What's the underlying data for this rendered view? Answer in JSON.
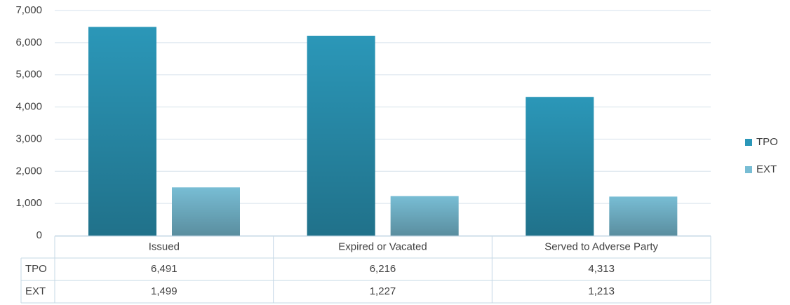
{
  "chart_data": {
    "type": "bar",
    "categories": [
      "Issued",
      "Expired or Vacated",
      "Served to Adverse Party"
    ],
    "series": [
      {
        "name": "TPO",
        "color": "#2b97b8",
        "values": [
          6491,
          6216,
          4313
        ],
        "value_labels": [
          "6,491",
          "6,216",
          "4,313"
        ]
      },
      {
        "name": "EXT",
        "color": "#78bdd4",
        "values": [
          1499,
          1227,
          1213
        ],
        "value_labels": [
          "1,499",
          "1,227",
          "1,213"
        ]
      }
    ],
    "ylim": [
      0,
      7000
    ],
    "yticks": [
      0,
      {
        "value": 1000,
        "label": "1,000"
      },
      {
        "value": 2000,
        "label": "2,000"
      },
      {
        "value": 3000,
        "label": "3,000"
      },
      {
        "value": 4000,
        "label": "4,000"
      },
      {
        "value": 5000,
        "label": "5,000"
      },
      {
        "value": 6000,
        "label": "6,000"
      },
      {
        "value": 7000,
        "label": "7,000"
      }
    ],
    "grid": true,
    "legend": "right"
  }
}
